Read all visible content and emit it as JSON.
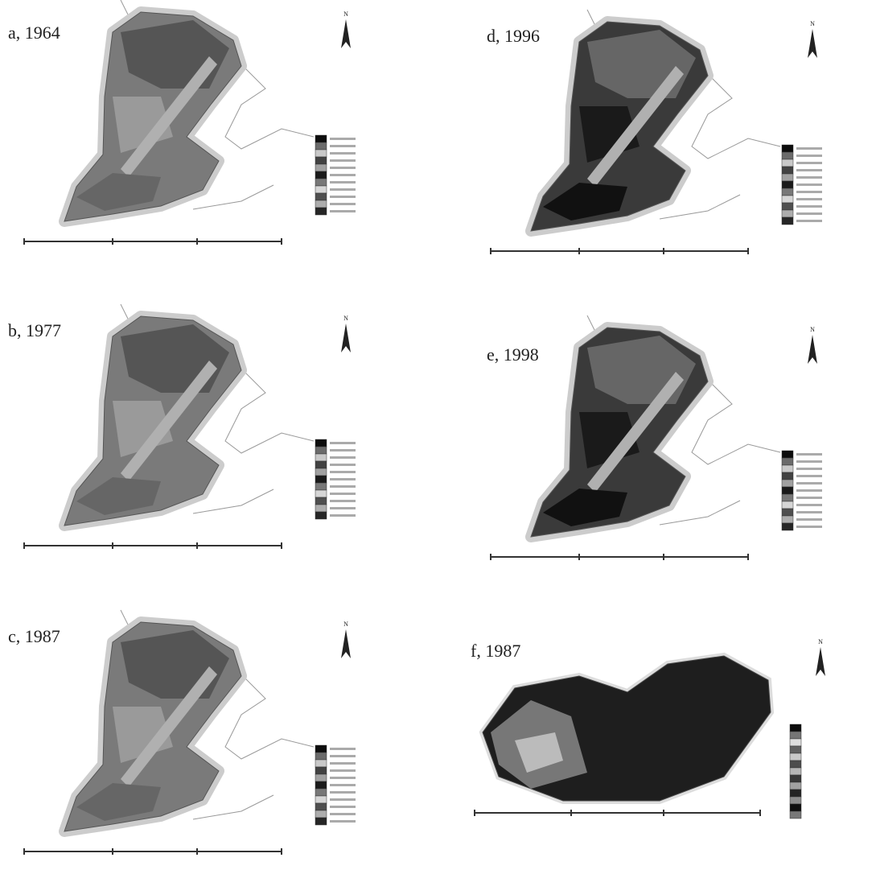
{
  "panels": [
    {
      "title": "a, 1964",
      "north": "N"
    },
    {
      "title": "d, 1996",
      "north": "N"
    },
    {
      "title": "b, 1977",
      "north": "N"
    },
    {
      "title": "e, 1998",
      "north": "N"
    },
    {
      "title": "c, 1987",
      "north": "N"
    },
    {
      "title": "f, 1987",
      "north": "N"
    }
  ]
}
